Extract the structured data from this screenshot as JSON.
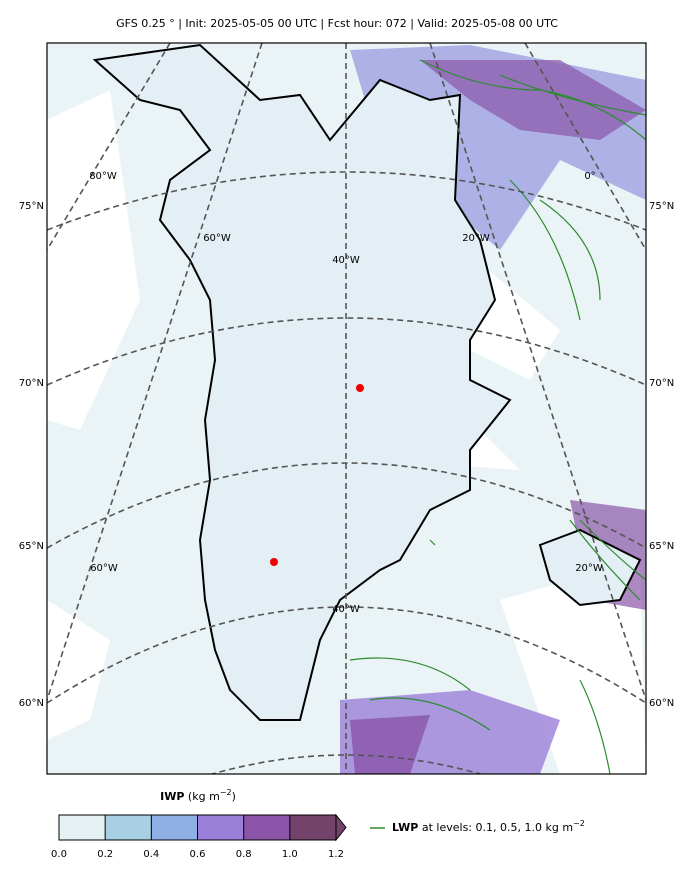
{
  "header": {
    "title": "GFS 0.25 °  |  Init: 2025-05-05 00 UTC  |  Fcst hour: 072  |  Valid: 2025-05-08 00 UTC"
  },
  "map": {
    "lat_labels_left": [
      "75°N",
      "70°N",
      "65°N",
      "60°N"
    ],
    "lat_labels_right": [
      "75°N",
      "70°N",
      "65°N",
      "60°N"
    ],
    "lon_labels": [
      "80°W",
      "60°W",
      "40°W",
      "20°W",
      "0°",
      "60°W",
      "40°W",
      "20°W"
    ]
  },
  "colorbar": {
    "label": "IWP",
    "unit": "(kg m",
    "unit_exp": "−2",
    "unit_close": ")",
    "lim": [
      0,
      1.2
    ],
    "ticks": [
      {
        "value": 0,
        "label": "0.0"
      },
      0.2,
      0.4,
      0.6,
      0.8,
      {
        "value": 1,
        "label": "1.0"
      },
      1.2
    ],
    "colors": [
      "#e6f1f3",
      "#a9cfe2",
      "#8fb0e4",
      "#9a80d8",
      "#8a55a8",
      "#74436c"
    ]
  },
  "legend": {
    "name": "LWP",
    "text": "at levels: 0.1, 0.5, 1.0  kg m",
    "exp": "−2",
    "color": "#2e8b2e"
  }
}
